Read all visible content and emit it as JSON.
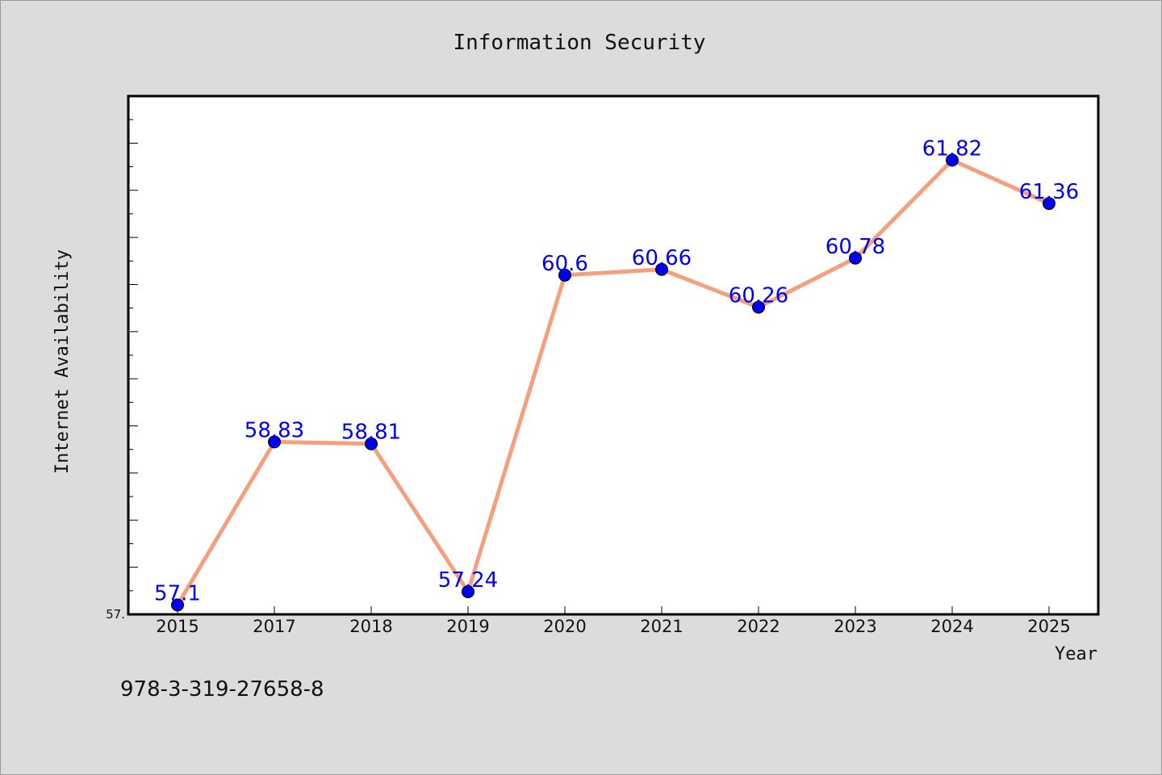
{
  "chart_data": {
    "type": "line",
    "title": "Information Security",
    "xlabel": "Year",
    "ylabel": "Internet Availability",
    "categories": [
      "2015",
      "2017",
      "2018",
      "2019",
      "2020",
      "2021",
      "2022",
      "2023",
      "2024",
      "2025"
    ],
    "series": [
      {
        "values": [
          57.1,
          58.83,
          58.81,
          57.24,
          60.6,
          60.66,
          60.26,
          60.78,
          61.82,
          61.36
        ],
        "labels": [
          "57.1",
          "58.83",
          "58.81",
          "57.24",
          "60.6",
          "60.66",
          "60.26",
          "60.78",
          "61.82",
          "61.36"
        ]
      }
    ],
    "ylim": [
      57.0,
      62.5
    ],
    "ytick_labels": [
      {
        "value": 57.0,
        "label": "57."
      }
    ],
    "grid": false,
    "colors": {
      "line": "#f4a07e",
      "marker": "#0000ee",
      "data_label": "#0000ee",
      "plot_bg": "#ffffff",
      "page_bg": "#dcdcdc"
    }
  },
  "footer_text": "978-3-319-27658-8"
}
